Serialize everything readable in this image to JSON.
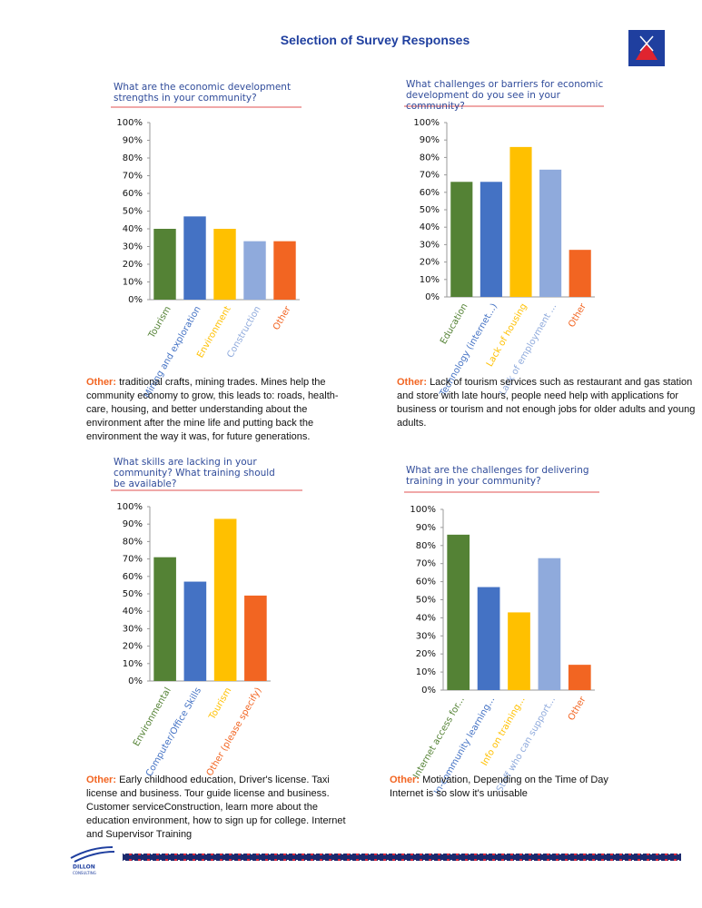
{
  "title": "Selection of Survey Responses",
  "logo_text": "DILLON",
  "logo_subtext": "CONSULTING",
  "chart_data": [
    {
      "type": "bar",
      "title": "What are the economic development strengths in your community?",
      "categories": [
        "Tourism",
        "Mining and exploration",
        "Environment",
        "Construction",
        "Other"
      ],
      "values": [
        40,
        47,
        40,
        33,
        33
      ],
      "colors": [
        "#548235",
        "#4472c4",
        "#ffc000",
        "#8faadc",
        "#f26522"
      ],
      "ylim": [
        0,
        100
      ],
      "yticks": [
        {
          "value": 0,
          "label": "0%"
        },
        {
          "value": 10,
          "label": "10%"
        },
        {
          "value": 20,
          "label": "20%"
        },
        {
          "value": 30,
          "label": "30%"
        },
        {
          "value": 40,
          "label": "40%"
        },
        {
          "value": 50,
          "label": "50%"
        },
        {
          "value": 60,
          "label": "60%"
        },
        {
          "value": 70,
          "label": "70%"
        },
        {
          "value": 80,
          "label": "80%"
        },
        {
          "value": 90,
          "label": "90%"
        },
        {
          "value": 100,
          "label": "100%"
        }
      ]
    },
    {
      "type": "bar",
      "title": "What challenges or barriers for economic development do you see in your community?",
      "categories": [
        "Education",
        "Technology (internet...)",
        "Lack of housing",
        "Lack of employment ...",
        "Other"
      ],
      "values": [
        66,
        66,
        86,
        73,
        27
      ],
      "colors": [
        "#548235",
        "#4472c4",
        "#ffc000",
        "#8faadc",
        "#f26522"
      ],
      "ylim": [
        0,
        100
      ],
      "yticks": [
        {
          "value": 0,
          "label": "0%"
        },
        {
          "value": 10,
          "label": "10%"
        },
        {
          "value": 20,
          "label": "20%"
        },
        {
          "value": 30,
          "label": "30%"
        },
        {
          "value": 40,
          "label": "40%"
        },
        {
          "value": 50,
          "label": "50%"
        },
        {
          "value": 60,
          "label": "60%"
        },
        {
          "value": 70,
          "label": "70%"
        },
        {
          "value": 80,
          "label": "80%"
        },
        {
          "value": 90,
          "label": "90%"
        },
        {
          "value": 100,
          "label": "100%"
        }
      ]
    },
    {
      "type": "bar",
      "title": "What skills are lacking in your community? What training should be available?",
      "categories": [
        "Environmental",
        "Computer/Office Skills",
        "Tourism",
        "Other (please specify)"
      ],
      "values": [
        71,
        57,
        93,
        49
      ],
      "colors": [
        "#548235",
        "#4472c4",
        "#ffc000",
        "#f26522"
      ],
      "ylim": [
        0,
        100
      ],
      "yticks": [
        {
          "value": 0,
          "label": "0%"
        },
        {
          "value": 10,
          "label": "10%"
        },
        {
          "value": 20,
          "label": "20%"
        },
        {
          "value": 30,
          "label": "30%"
        },
        {
          "value": 40,
          "label": "40%"
        },
        {
          "value": 50,
          "label": "50%"
        },
        {
          "value": 60,
          "label": "60%"
        },
        {
          "value": 70,
          "label": "70%"
        },
        {
          "value": 80,
          "label": "80%"
        },
        {
          "value": 90,
          "label": "90%"
        },
        {
          "value": 100,
          "label": "100%"
        }
      ]
    },
    {
      "type": "bar",
      "title": "What are the challenges for delivering training in your community?",
      "categories": [
        "Internet access for...",
        "In-community learning...",
        "Info on training...",
        "Staff who can support...",
        "Other"
      ],
      "values": [
        86,
        57,
        43,
        73,
        14
      ],
      "colors": [
        "#548235",
        "#4472c4",
        "#ffc000",
        "#8faadc",
        "#f26522"
      ],
      "ylim": [
        0,
        100
      ],
      "yticks": [
        {
          "value": 0,
          "label": "0%"
        },
        {
          "value": 10,
          "label": "10%"
        },
        {
          "value": 20,
          "label": "20%"
        },
        {
          "value": 30,
          "label": "30%"
        },
        {
          "value": 40,
          "label": "40%"
        },
        {
          "value": 50,
          "label": "50%"
        },
        {
          "value": 60,
          "label": "60%"
        },
        {
          "value": 70,
          "label": "70%"
        },
        {
          "value": 80,
          "label": "80%"
        },
        {
          "value": 90,
          "label": "90%"
        },
        {
          "value": 100,
          "label": "100%"
        }
      ]
    }
  ],
  "notes": [
    {
      "label": "Other:",
      "text": "traditional crafts, mining trades. Mines help the community economy to grow, this leads to: roads, health-care, housing, and better understanding about the environment after the mine life and putting back the environment the way it was, for future generations."
    },
    {
      "label": "Other:",
      "text": "Lack of tourism services such as restaurant and gas station and store with late hours, people need help with applications for business or tourism and not enough jobs for older adults and young adults."
    },
    {
      "label": "Other:",
      "text": "Early childhood education, Driver's license. Taxi license and business. Tour guide license and business. Customer serviceConstruction, learn more about the education environment, how to sign up for college. Internet and Supervisor Training"
    },
    {
      "label": "Other:",
      "text": "Motivation, Depending on the Time of Day Internet is so slow it's unusable"
    }
  ]
}
